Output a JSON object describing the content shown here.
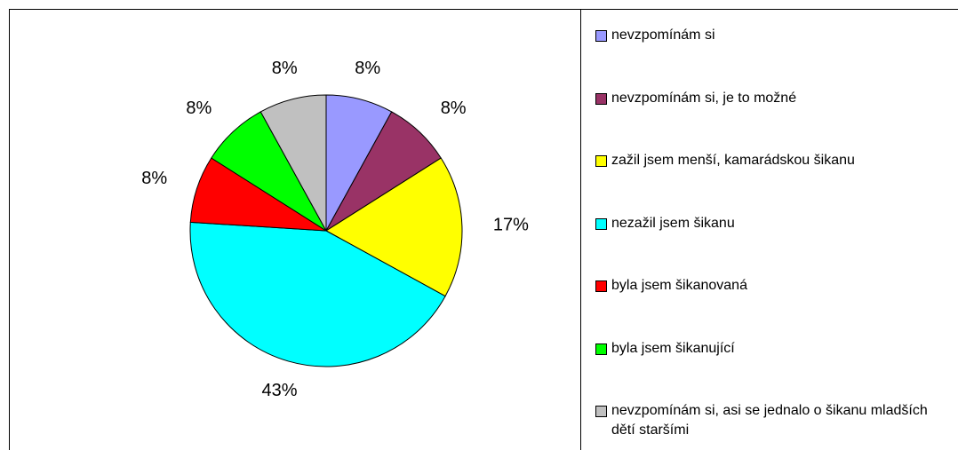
{
  "chart_data": {
    "type": "pie",
    "categories": [
      "nevzpomínám si",
      "nevzpomínám si, je to možné",
      "zažil jsem menší, kamarádskou šikanu",
      "nezažil jsem šikanu",
      "byla jsem šikanovaná",
      "byla jsem šikanující",
      "nevzpomínám si, asi se jednalo o šikanu mladších dětí staršími"
    ],
    "values": [
      8,
      8,
      17,
      43,
      8,
      8,
      8
    ],
    "value_labels": [
      "8%",
      "8%",
      "17%",
      "43%",
      "8%",
      "8%",
      "8%"
    ],
    "colors": [
      "#9999ff",
      "#993366",
      "#ffff00",
      "#00ffff",
      "#ff0000",
      "#00ff00",
      "#c0c0c0"
    ],
    "legend": "right"
  }
}
